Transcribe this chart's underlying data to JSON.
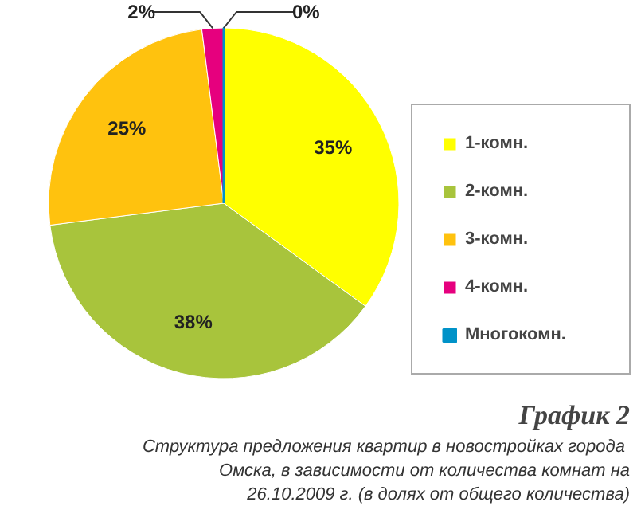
{
  "chart_data": {
    "type": "pie",
    "title": "График 2",
    "subtitle": "Структура предложения квартир в новостройках  города Омска, в зависимости от количества комнат на 26.10.2009 г. (в долях от общего количества)",
    "categories": [
      "1-комн.",
      "2-комн.",
      "3-комн.",
      "4-комн.",
      "Многокомн."
    ],
    "values": [
      35,
      38,
      25,
      2,
      0
    ],
    "colors": [
      "#ffff00",
      "#a8c43c",
      "#ffc20e",
      "#e6007e",
      "#0092c8"
    ],
    "value_labels": [
      "35%",
      "38%",
      "25%",
      "2%",
      "0%"
    ],
    "legend": "right"
  }
}
